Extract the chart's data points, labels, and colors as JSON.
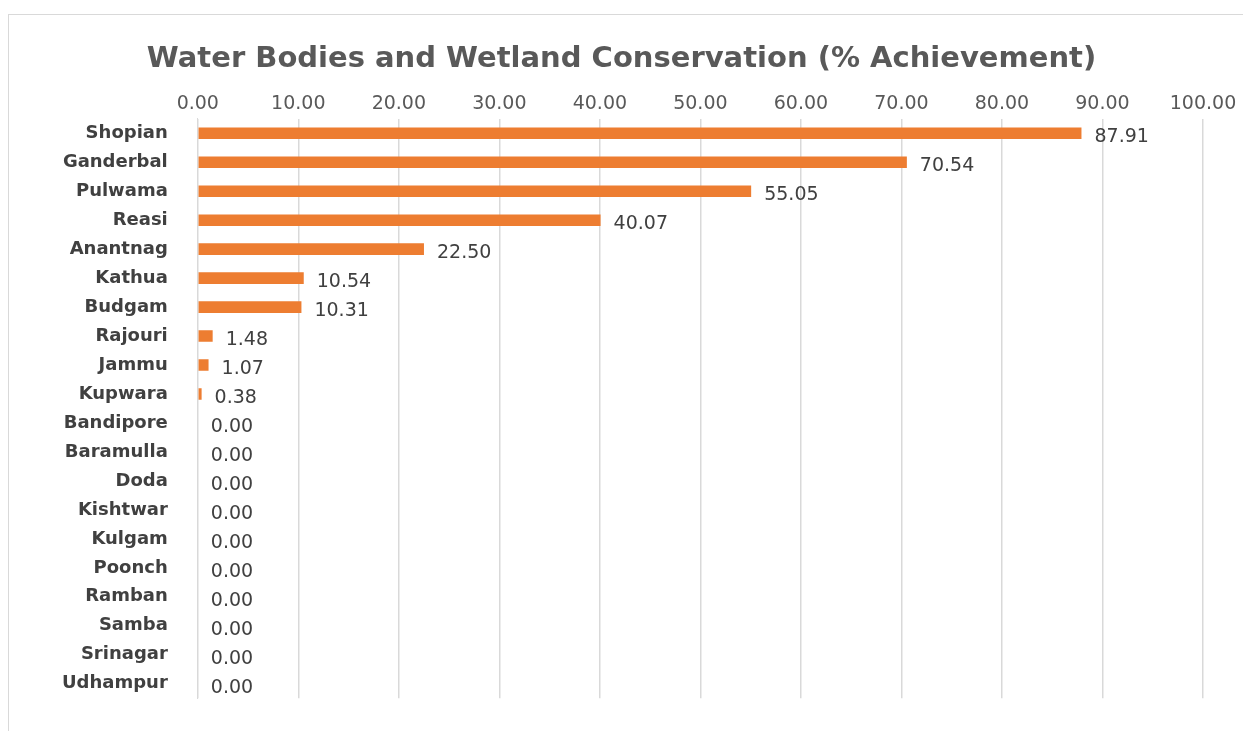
{
  "chart_data": {
    "type": "bar",
    "orientation": "horizontal",
    "title": "Water Bodies and Wetland Conservation (% Achievement)",
    "categories": [
      "Shopian",
      "Ganderbal",
      "Pulwama",
      "Reasi",
      "Anantnag",
      "Kathua",
      "Budgam",
      "Rajouri",
      "Jammu",
      "Kupwara",
      "Bandipore",
      "Baramulla",
      "Doda",
      "Kishtwar",
      "Kulgam",
      "Poonch",
      "Ramban",
      "Samba",
      "Srinagar",
      "Udhampur"
    ],
    "values": [
      87.91,
      70.54,
      55.05,
      40.07,
      22.5,
      10.54,
      10.31,
      1.48,
      1.07,
      0.38,
      0,
      0,
      0,
      0,
      0,
      0,
      0,
      0,
      0,
      0
    ],
    "value_labels": [
      "87.91",
      "70.54",
      "55.05",
      "40.07",
      "22.50",
      "10.54",
      "10.31",
      "1.48",
      "1.07",
      "0.38",
      "0.00",
      "0.00",
      "0.00",
      "0.00",
      "0.00",
      "0.00",
      "0.00",
      "0.00",
      "0.00",
      "0.00"
    ],
    "color": "#ed7d31",
    "xlim": [
      0,
      100
    ],
    "xticks": [
      {
        "value": 0,
        "label": "0.00"
      },
      {
        "value": 10,
        "label": "10.00"
      },
      {
        "value": 20,
        "label": "20.00"
      },
      {
        "value": 30,
        "label": "30.00"
      },
      {
        "value": 40,
        "label": "40.00"
      },
      {
        "value": 50,
        "label": "50.00"
      },
      {
        "value": 60,
        "label": "60.00"
      },
      {
        "value": 70,
        "label": "70.00"
      },
      {
        "value": 80,
        "label": "80.00"
      },
      {
        "value": 90,
        "label": "90.00"
      },
      {
        "value": 100,
        "label": "100.00"
      }
    ],
    "grid": "x",
    "legend": false
  }
}
